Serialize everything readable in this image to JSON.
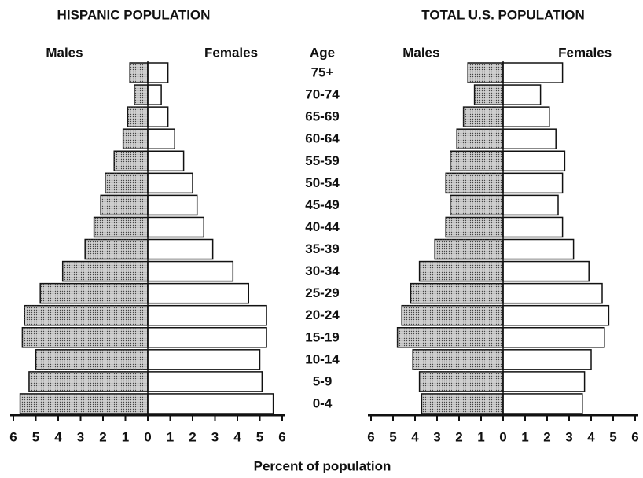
{
  "axis_label": "Percent of population",
  "age_label": "Age",
  "categories": [
    "0-4",
    "5-9",
    "10-14",
    "15-19",
    "20-24",
    "25-29",
    "30-34",
    "35-39",
    "40-44",
    "45-49",
    "50-54",
    "55-59",
    "60-64",
    "65-69",
    "70-74",
    "75+"
  ],
  "chart_data": [
    {
      "type": "pyramid",
      "title": "HISPANIC POPULATION",
      "xlim": [
        0,
        6
      ],
      "xticks": [
        0,
        1,
        2,
        3,
        4,
        5,
        6
      ],
      "series": [
        {
          "name": "Males",
          "color": "#cfcfcf",
          "values": [
            5.7,
            5.3,
            5.0,
            5.6,
            5.5,
            4.8,
            3.8,
            2.8,
            2.4,
            2.1,
            1.9,
            1.5,
            1.1,
            0.9,
            0.6,
            0.8
          ]
        },
        {
          "name": "Females",
          "color": "#ffffff",
          "values": [
            5.6,
            5.1,
            5.0,
            5.3,
            5.3,
            4.5,
            3.8,
            2.9,
            2.5,
            2.2,
            2.0,
            1.6,
            1.2,
            0.9,
            0.6,
            0.9
          ]
        }
      ]
    },
    {
      "type": "pyramid",
      "title": "TOTAL U.S. POPULATION",
      "xlim": [
        0,
        6
      ],
      "xticks": [
        0,
        1,
        2,
        3,
        4,
        5,
        6
      ],
      "series": [
        {
          "name": "Males",
          "color": "#cfcfcf",
          "values": [
            3.7,
            3.8,
            4.1,
            4.8,
            4.6,
            4.2,
            3.8,
            3.1,
            2.6,
            2.4,
            2.6,
            2.4,
            2.1,
            1.8,
            1.3,
            1.6
          ]
        },
        {
          "name": "Females",
          "color": "#ffffff",
          "values": [
            3.6,
            3.7,
            4.0,
            4.6,
            4.8,
            4.5,
            3.9,
            3.2,
            2.7,
            2.5,
            2.7,
            2.8,
            2.4,
            2.1,
            1.7,
            2.7
          ]
        }
      ]
    }
  ]
}
